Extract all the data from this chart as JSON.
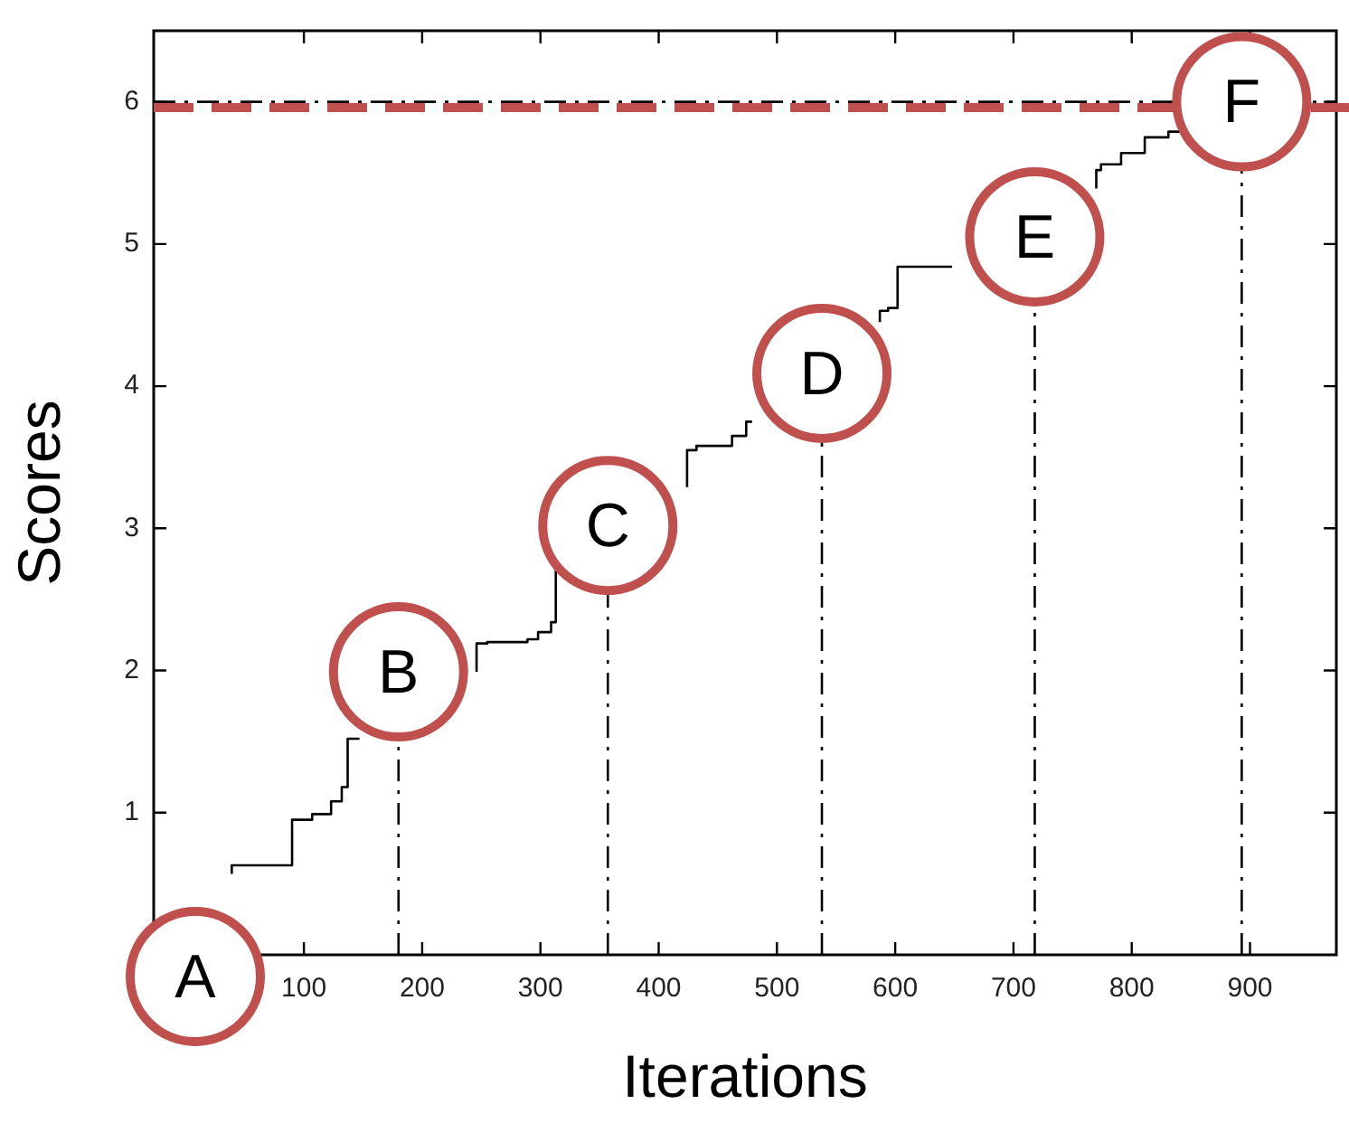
{
  "chart_data": {
    "type": "step",
    "xlabel": "Iterations",
    "ylabel": "Scores",
    "xlim": [
      -27,
      973
    ],
    "xticks": [
      100,
      200,
      300,
      400,
      500,
      600,
      700,
      800,
      900
    ],
    "ylim": [
      0,
      6.5
    ],
    "yticks": [
      1,
      2,
      3,
      4,
      5,
      6
    ],
    "grid": false,
    "legend": false,
    "series": [
      {
        "color": "#000000",
        "x": [
          39,
          90,
          107,
          123,
          132,
          137,
          147,
          150,
          246,
          255,
          289,
          298,
          309,
          313,
          315,
          318,
          424,
          432,
          462,
          474,
          479,
          482,
          587,
          594,
          602,
          613,
          648,
          650,
          770,
          774,
          791,
          811,
          831,
          843
        ],
        "values": [
          0.57,
          0.63,
          0.95,
          0.99,
          1.08,
          1.18,
          1.52,
          null,
          1.99,
          2.19,
          2.2,
          2.22,
          2.27,
          2.34,
          2.7,
          null,
          3.29,
          3.55,
          3.58,
          3.65,
          3.75,
          null,
          4.45,
          4.53,
          4.55,
          4.84,
          4.84,
          null,
          5.39,
          5.52,
          5.56,
          5.64,
          5.75,
          5.79
        ]
      }
    ],
    "ref_lines": [
      {
        "axis": "y",
        "value": 6,
        "color": "#000000",
        "line_style": "dashed"
      },
      {
        "axis": "y",
        "value": 5.96,
        "color": "#c0504d",
        "line_style": "dashed"
      },
      {
        "axis": "x",
        "value": 180,
        "color": "#000000",
        "line_style": "dashed"
      },
      {
        "axis": "x",
        "value": 357,
        "color": "#000000",
        "line_style": "dashed"
      },
      {
        "axis": "x",
        "value": 538,
        "color": "#000000",
        "line_style": "dashed"
      },
      {
        "axis": "x",
        "value": 718,
        "color": "#000000",
        "line_style": "dashed"
      },
      {
        "axis": "x",
        "value": 893,
        "color": "#000000",
        "line_style": "dashed"
      }
    ],
    "annotations": [
      "A",
      {
        "text": "B",
        "x": 180,
        "y": 1.99
      },
      {
        "text": "C",
        "x": 357,
        "y": 3.02
      },
      {
        "text": "D",
        "x": 538,
        "y": 4.09
      },
      {
        "text": "E",
        "x": 718,
        "y": 5.05
      },
      {
        "text": "F",
        "x": 893,
        "y": 6.0
      }
    ]
  }
}
